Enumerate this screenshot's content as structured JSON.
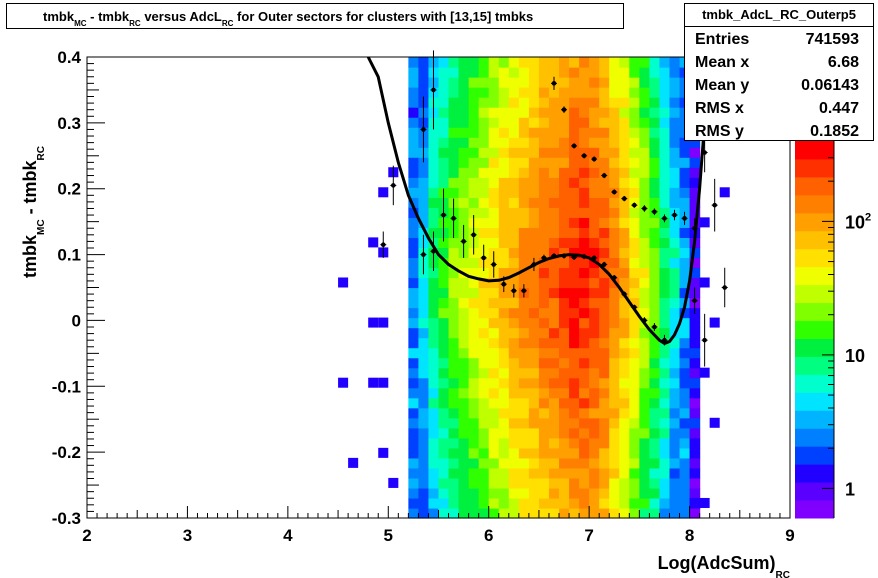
{
  "title": {
    "parts": [
      {
        "text": "tmbk",
        "sub": false
      },
      {
        "text": "MC",
        "sub": true
      },
      {
        "text": " - tmbk",
        "sub": false
      },
      {
        "text": "RC",
        "sub": true
      },
      {
        "text": " versus AdcL",
        "sub": false
      },
      {
        "text": "RC",
        "sub": true
      },
      {
        "text": " for Outer sectors for clusters with [13,15] tmbks",
        "sub": false
      }
    ]
  },
  "stats": {
    "name": "tmbk_AdcL_RC_Outerp5",
    "rows": [
      {
        "label": "Entries",
        "value": "741593"
      },
      {
        "label": "Mean x",
        "value": "6.68"
      },
      {
        "label": "Mean y",
        "value": "0.06143"
      },
      {
        "label": "RMS x",
        "value": "0.447"
      },
      {
        "label": "RMS y",
        "value": "0.1852"
      }
    ]
  },
  "chart_data": {
    "type": "heatmap",
    "xlabel": "Log(AdcSum)",
    "xlabel_sub": "RC",
    "ylabel": "tmbk",
    "ylabel_sub1": "MC",
    "ylabel_mid": " - tmbk",
    "ylabel_sub2": "RC",
    "xlim": [
      2,
      9
    ],
    "ylim": [
      -0.3,
      0.4
    ],
    "x_ticks": [
      "2",
      "3",
      "4",
      "5",
      "6",
      "7",
      "8",
      "9"
    ],
    "y_ticks": [
      "-0.3",
      "-0.2",
      "-0.1",
      "0",
      "0.1",
      "0.2",
      "0.3",
      "0.4"
    ],
    "z_scale": "log",
    "z_range": [
      0.6,
      400
    ],
    "z_ticks": [
      {
        "value": 1,
        "base": "1",
        "exp": ""
      },
      {
        "value": 10,
        "base": "10",
        "exp": ""
      },
      {
        "value": 100,
        "base": "10",
        "exp": "2"
      }
    ],
    "columns": [
      {
        "x": 5.25,
        "level": 0.2
      },
      {
        "x": 5.35,
        "level": 0.34
      },
      {
        "x": 5.45,
        "level": 0.45
      },
      {
        "x": 5.55,
        "level": 0.52
      },
      {
        "x": 5.65,
        "level": 0.58
      },
      {
        "x": 5.75,
        "level": 0.62
      },
      {
        "x": 5.85,
        "level": 0.66
      },
      {
        "x": 5.95,
        "level": 0.7
      },
      {
        "x": 6.05,
        "level": 0.74
      },
      {
        "x": 6.15,
        "level": 0.78
      },
      {
        "x": 6.25,
        "level": 0.82
      },
      {
        "x": 6.35,
        "level": 0.85
      },
      {
        "x": 6.45,
        "level": 0.88
      },
      {
        "x": 6.55,
        "level": 0.91
      },
      {
        "x": 6.65,
        "level": 0.93
      },
      {
        "x": 6.75,
        "level": 0.96
      },
      {
        "x": 6.85,
        "level": 0.99
      },
      {
        "x": 6.95,
        "level": 1.0
      },
      {
        "x": 7.05,
        "level": 0.97
      },
      {
        "x": 7.15,
        "level": 0.93
      },
      {
        "x": 7.25,
        "level": 0.87
      },
      {
        "x": 7.35,
        "level": 0.8
      },
      {
        "x": 7.45,
        "level": 0.72
      },
      {
        "x": 7.55,
        "level": 0.64
      },
      {
        "x": 7.65,
        "level": 0.56
      },
      {
        "x": 7.75,
        "level": 0.46
      },
      {
        "x": 7.85,
        "level": 0.36
      },
      {
        "x": 7.95,
        "level": 0.22
      },
      {
        "x": 8.05,
        "level": 0.08
      }
    ],
    "points": [
      {
        "x": 4.95,
        "y": 0.115,
        "ey": 0.02
      },
      {
        "x": 5.05,
        "y": 0.205,
        "ey": 0.03
      },
      {
        "x": 5.35,
        "y": 0.29,
        "ey": 0.05
      },
      {
        "x": 5.35,
        "y": 0.1,
        "ey": 0.03
      },
      {
        "x": 5.45,
        "y": 0.35,
        "ey": 0.06
      },
      {
        "x": 5.45,
        "y": 0.105,
        "ey": 0.03
      },
      {
        "x": 5.55,
        "y": 0.16,
        "ey": 0.04
      },
      {
        "x": 5.65,
        "y": 0.155,
        "ey": 0.03
      },
      {
        "x": 5.75,
        "y": 0.12,
        "ey": 0.025
      },
      {
        "x": 5.85,
        "y": 0.13,
        "ey": 0.03
      },
      {
        "x": 5.95,
        "y": 0.095,
        "ey": 0.02
      },
      {
        "x": 6.05,
        "y": 0.085,
        "ey": 0.02
      },
      {
        "x": 6.15,
        "y": 0.055,
        "ey": 0.012
      },
      {
        "x": 6.25,
        "y": 0.045,
        "ey": 0.01
      },
      {
        "x": 6.35,
        "y": 0.045,
        "ey": 0.01
      },
      {
        "x": 6.45,
        "y": 0.085,
        "ey": 0.01
      },
      {
        "x": 6.55,
        "y": 0.095,
        "ey": 0.005
      },
      {
        "x": 6.65,
        "y": 0.36,
        "ey": 0.01
      },
      {
        "x": 6.65,
        "y": 0.098,
        "ey": 0.004
      },
      {
        "x": 6.75,
        "y": 0.32,
        "ey": 0.005
      },
      {
        "x": 6.75,
        "y": 0.098,
        "ey": 0.004
      },
      {
        "x": 6.85,
        "y": 0.265,
        "ey": 0.004
      },
      {
        "x": 6.85,
        "y": 0.096,
        "ey": 0.004
      },
      {
        "x": 6.95,
        "y": 0.25,
        "ey": 0.004
      },
      {
        "x": 6.95,
        "y": 0.097,
        "ey": 0.004
      },
      {
        "x": 7.05,
        "y": 0.245,
        "ey": 0.004
      },
      {
        "x": 7.05,
        "y": 0.095,
        "ey": 0.004
      },
      {
        "x": 7.15,
        "y": 0.22,
        "ey": 0.004
      },
      {
        "x": 7.15,
        "y": 0.085,
        "ey": 0.004
      },
      {
        "x": 7.25,
        "y": 0.195,
        "ey": 0.004
      },
      {
        "x": 7.25,
        "y": 0.065,
        "ey": 0.004
      },
      {
        "x": 7.35,
        "y": 0.185,
        "ey": 0.004
      },
      {
        "x": 7.35,
        "y": 0.04,
        "ey": 0.004
      },
      {
        "x": 7.45,
        "y": 0.175,
        "ey": 0.004
      },
      {
        "x": 7.45,
        "y": 0.02,
        "ey": 0.004
      },
      {
        "x": 7.55,
        "y": 0.17,
        "ey": 0.005
      },
      {
        "x": 7.55,
        "y": 0.0,
        "ey": 0.005
      },
      {
        "x": 7.65,
        "y": 0.165,
        "ey": 0.005
      },
      {
        "x": 7.65,
        "y": -0.01,
        "ey": 0.006
      },
      {
        "x": 7.75,
        "y": 0.155,
        "ey": 0.006
      },
      {
        "x": 7.75,
        "y": -0.03,
        "ey": 0.008
      },
      {
        "x": 7.85,
        "y": 0.16,
        "ey": 0.008
      },
      {
        "x": 7.95,
        "y": 0.155,
        "ey": 0.01
      },
      {
        "x": 8.05,
        "y": 0.14,
        "ey": 0.015
      },
      {
        "x": 8.05,
        "y": 0.03,
        "ey": 0.02
      },
      {
        "x": 8.15,
        "y": 0.255,
        "ey": 0.03
      },
      {
        "x": 8.15,
        "y": -0.03,
        "ey": 0.04
      },
      {
        "x": 8.25,
        "y": 0.175,
        "ey": 0.04
      },
      {
        "x": 8.35,
        "y": 0.05,
        "ey": 0.03
      }
    ],
    "fit_curve": [
      [
        4.8,
        0.4
      ],
      [
        4.9,
        0.37
      ],
      [
        5.0,
        0.3
      ],
      [
        5.1,
        0.24
      ],
      [
        5.2,
        0.19
      ],
      [
        5.3,
        0.155
      ],
      [
        5.4,
        0.125
      ],
      [
        5.5,
        0.1
      ],
      [
        5.6,
        0.085
      ],
      [
        5.7,
        0.075
      ],
      [
        5.8,
        0.067
      ],
      [
        5.9,
        0.063
      ],
      [
        6.0,
        0.06
      ],
      [
        6.1,
        0.061
      ],
      [
        6.2,
        0.065
      ],
      [
        6.3,
        0.072
      ],
      [
        6.4,
        0.08
      ],
      [
        6.5,
        0.088
      ],
      [
        6.6,
        0.094
      ],
      [
        6.7,
        0.098
      ],
      [
        6.8,
        0.1
      ],
      [
        6.9,
        0.099
      ],
      [
        7.0,
        0.095
      ],
      [
        7.1,
        0.085
      ],
      [
        7.2,
        0.07
      ],
      [
        7.3,
        0.05
      ],
      [
        7.4,
        0.028
      ],
      [
        7.5,
        0.006
      ],
      [
        7.6,
        -0.014
      ],
      [
        7.7,
        -0.03
      ],
      [
        7.75,
        -0.035
      ],
      [
        7.8,
        -0.032
      ],
      [
        7.85,
        -0.022
      ],
      [
        7.9,
        -0.005
      ],
      [
        7.95,
        0.02
      ],
      [
        8.0,
        0.06
      ],
      [
        8.05,
        0.12
      ],
      [
        8.1,
        0.2
      ],
      [
        8.15,
        0.3
      ],
      [
        8.2,
        0.4
      ]
    ]
  }
}
